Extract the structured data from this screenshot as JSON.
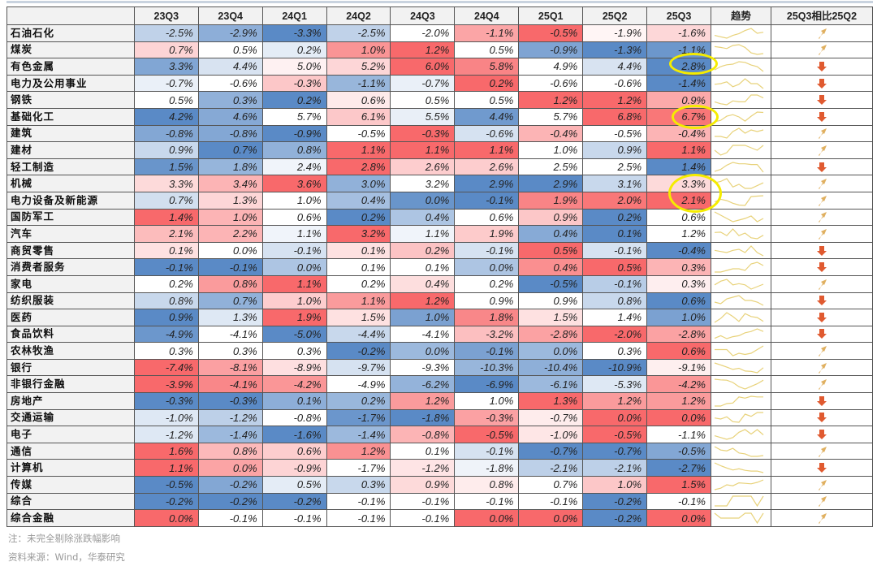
{
  "header": {
    "industry": "",
    "quarters": [
      "23Q3",
      "23Q4",
      "24Q1",
      "24Q2",
      "24Q3",
      "24Q4",
      "25Q1",
      "25Q2",
      "25Q3"
    ],
    "trend": "趋势",
    "compare": "25Q3相比25Q2"
  },
  "rows": [
    {
      "name": "石油石化",
      "values": [
        "-2.5%",
        "-2.9%",
        "-3.3%",
        "-2.5%",
        "-2.0%",
        "-1.1%",
        "-0.5%",
        "-1.9%",
        "-1.6%"
      ],
      "dir": "up"
    },
    {
      "name": "煤炭",
      "values": [
        "0.7%",
        "0.5%",
        "0.2%",
        "1.0%",
        "1.2%",
        "0.5%",
        "-0.9%",
        "-1.3%",
        "-1.1%"
      ],
      "dir": "up"
    },
    {
      "name": "有色金属",
      "values": [
        "3.3%",
        "4.4%",
        "5.0%",
        "5.2%",
        "6.0%",
        "5.8%",
        "4.9%",
        "4.4%",
        "2.8%"
      ],
      "dir": "down"
    },
    {
      "name": "电力及公用事业",
      "values": [
        "-0.7%",
        "-0.6%",
        "-0.3%",
        "-1.1%",
        "-0.7%",
        "0.2%",
        "-0.6%",
        "-0.6%",
        "-1.4%"
      ],
      "dir": "down"
    },
    {
      "name": "钢铁",
      "values": [
        "0.5%",
        "0.3%",
        "0.2%",
        "0.6%",
        "0.5%",
        "0.5%",
        "1.2%",
        "1.2%",
        "0.9%"
      ],
      "dir": "down"
    },
    {
      "name": "基础化工",
      "values": [
        "4.2%",
        "4.6%",
        "5.7%",
        "6.1%",
        "5.5%",
        "4.4%",
        "5.7%",
        "6.8%",
        "6.7%"
      ],
      "dir": "down"
    },
    {
      "name": "建筑",
      "values": [
        "-0.8%",
        "-0.8%",
        "-0.9%",
        "-0.5%",
        "-0.3%",
        "-0.6%",
        "-0.4%",
        "-0.5%",
        "-0.4%"
      ],
      "dir": "up"
    },
    {
      "name": "建材",
      "values": [
        "0.9%",
        "0.7%",
        "0.8%",
        "1.1%",
        "1.1%",
        "1.1%",
        "1.0%",
        "0.9%",
        "1.1%"
      ],
      "dir": "up"
    },
    {
      "name": "轻工制造",
      "values": [
        "1.5%",
        "1.8%",
        "2.4%",
        "2.8%",
        "2.6%",
        "2.6%",
        "2.5%",
        "2.5%",
        "1.4%"
      ],
      "dir": "down"
    },
    {
      "name": "机械",
      "values": [
        "3.3%",
        "3.4%",
        "3.6%",
        "3.0%",
        "3.2%",
        "2.9%",
        "2.9%",
        "3.1%",
        "3.3%"
      ],
      "dir": "up"
    },
    {
      "name": "电力设备及新能源",
      "values": [
        "0.7%",
        "1.3%",
        "1.0%",
        "0.4%",
        "0.0%",
        "-0.1%",
        "1.9%",
        "2.0%",
        "2.1%"
      ],
      "dir": "up"
    },
    {
      "name": "国防军工",
      "values": [
        "1.4%",
        "1.0%",
        "0.6%",
        "0.2%",
        "0.4%",
        "0.6%",
        "0.9%",
        "0.2%",
        "0.6%"
      ],
      "dir": "up"
    },
    {
      "name": "汽车",
      "values": [
        "2.1%",
        "2.2%",
        "1.1%",
        "3.2%",
        "1.1%",
        "1.9%",
        "0.4%",
        "0.1%",
        "1.2%"
      ],
      "dir": "up"
    },
    {
      "name": "商贸零售",
      "values": [
        "0.1%",
        "0.0%",
        "-0.1%",
        "0.1%",
        "0.2%",
        "-0.1%",
        "0.5%",
        "-0.1%",
        "-0.4%"
      ],
      "dir": "down"
    },
    {
      "name": "消费者服务",
      "values": [
        "-0.1%",
        "-0.1%",
        "0.0%",
        "0.1%",
        "0.1%",
        "0.0%",
        "0.4%",
        "0.5%",
        "0.3%"
      ],
      "dir": "down"
    },
    {
      "name": "家电",
      "values": [
        "0.2%",
        "0.8%",
        "1.1%",
        "0.2%",
        "0.4%",
        "0.2%",
        "-0.5%",
        "-0.1%",
        "0.3%"
      ],
      "dir": "up"
    },
    {
      "name": "纺织服装",
      "values": [
        "0.8%",
        "0.7%",
        "1.0%",
        "1.1%",
        "1.2%",
        "0.9%",
        "0.9%",
        "0.8%",
        "0.6%"
      ],
      "dir": "down"
    },
    {
      "name": "医药",
      "values": [
        "0.9%",
        "1.3%",
        "1.9%",
        "1.5%",
        "1.0%",
        "1.8%",
        "1.5%",
        "1.4%",
        "1.0%"
      ],
      "dir": "down"
    },
    {
      "name": "食品饮料",
      "values": [
        "-4.9%",
        "-4.1%",
        "-5.0%",
        "-4.4%",
        "-4.1%",
        "-3.2%",
        "-2.8%",
        "-2.0%",
        "-2.8%"
      ],
      "dir": "down"
    },
    {
      "name": "农林牧渔",
      "values": [
        "0.3%",
        "0.3%",
        "0.3%",
        "-0.2%",
        "0.0%",
        "-0.1%",
        "0.0%",
        "0.3%",
        "0.6%"
      ],
      "dir": "up"
    },
    {
      "name": "银行",
      "values": [
        "-7.4%",
        "-8.1%",
        "-8.9%",
        "-9.7%",
        "-9.3%",
        "-10.3%",
        "-10.4%",
        "-10.9%",
        "-9.1%"
      ],
      "dir": "up"
    },
    {
      "name": "非银行金融",
      "values": [
        "-3.9%",
        "-4.1%",
        "-4.2%",
        "-4.9%",
        "-6.2%",
        "-6.9%",
        "-6.1%",
        "-5.3%",
        "-4.2%"
      ],
      "dir": "up"
    },
    {
      "name": "房地产",
      "values": [
        "-0.3%",
        "-0.3%",
        "0.1%",
        "0.2%",
        "1.2%",
        "1.0%",
        "1.3%",
        "1.2%",
        "1.2%"
      ],
      "dir": "down"
    },
    {
      "name": "交通运输",
      "values": [
        "-1.0%",
        "-1.2%",
        "-0.8%",
        "-1.7%",
        "-1.8%",
        "-0.3%",
        "-0.7%",
        "0.0%",
        "0.0%"
      ],
      "dir": "down"
    },
    {
      "name": "电子",
      "values": [
        "-1.2%",
        "-1.4%",
        "-1.6%",
        "-1.4%",
        "-0.8%",
        "-0.5%",
        "-1.0%",
        "-0.5%",
        "-1.1%"
      ],
      "dir": "down"
    },
    {
      "name": "通信",
      "values": [
        "1.6%",
        "0.8%",
        "0.6%",
        "1.2%",
        "0.1%",
        "-0.1%",
        "-0.7%",
        "-0.7%",
        "-0.5%"
      ],
      "dir": "up"
    },
    {
      "name": "计算机",
      "values": [
        "1.1%",
        "0.0%",
        "-0.9%",
        "-1.7%",
        "-1.2%",
        "-1.8%",
        "-2.1%",
        "-2.1%",
        "-2.7%"
      ],
      "dir": "down"
    },
    {
      "name": "传媒",
      "values": [
        "-0.5%",
        "-0.2%",
        "0.5%",
        "0.3%",
        "0.9%",
        "0.8%",
        "0.7%",
        "1.0%",
        "1.5%"
      ],
      "dir": "up"
    },
    {
      "name": "综合",
      "values": [
        "-0.2%",
        "-0.2%",
        "-0.2%",
        "-0.1%",
        "-0.1%",
        "-0.1%",
        "-0.1%",
        "-0.2%",
        "-0.1%"
      ],
      "dir": "up"
    },
    {
      "name": "综合金融",
      "values": [
        "0.0%",
        "-0.1%",
        "-0.1%",
        "-0.1%",
        "-0.1%",
        "0.0%",
        "0.0%",
        "-0.2%",
        "0.0%"
      ],
      "dir": "up"
    }
  ],
  "colors": {
    "high": "#f8696b",
    "mid": "#ffffff",
    "low": "#5a8ac6",
    "up_arrow": "#e0b060",
    "down_arrow": "#e05a30",
    "spark": "#e8d27a"
  },
  "footer": {
    "note": "注：未完全剔除涨跌幅影响",
    "source": "资料来源：Wind，华泰研究"
  },
  "chart_data": {
    "type": "heatmap",
    "title": "",
    "xlabel": "",
    "ylabel": "",
    "color_scale": "per-row: low blue, median white, high red"
  }
}
